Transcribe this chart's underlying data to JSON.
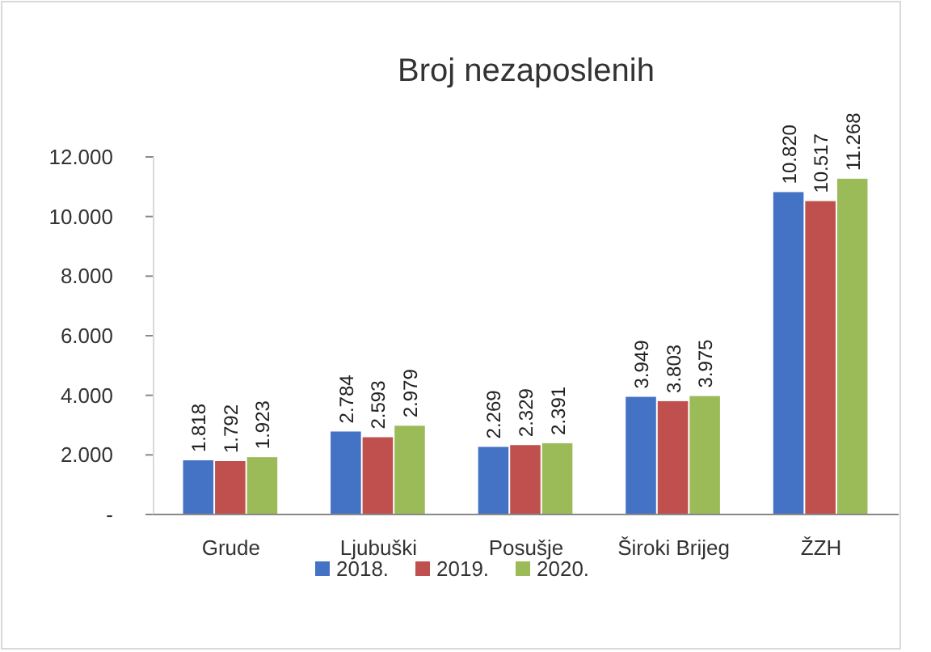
{
  "chart_data": {
    "type": "bar",
    "title": "Broj nezaposlenih",
    "categories": [
      "Grude",
      "Ljubuški",
      "Posušje",
      "Široki Brijeg",
      "ŽZH"
    ],
    "series": [
      {
        "name": "2018.",
        "color": "#4472c4",
        "values": [
          1818,
          2784,
          2269,
          3949,
          10820
        ],
        "value_labels": [
          "1.818",
          "2.784",
          "2.269",
          "3.949",
          "10.820"
        ]
      },
      {
        "name": "2019.",
        "color": "#c0504d",
        "values": [
          1792,
          2593,
          2329,
          3803,
          10517
        ],
        "value_labels": [
          "1.792",
          "2.593",
          "2.329",
          "3.803",
          "10.517"
        ]
      },
      {
        "name": "2020.",
        "color": "#9bbb59",
        "values": [
          1923,
          2979,
          2391,
          3975,
          11268
        ],
        "value_labels": [
          "1.923",
          "2.979",
          "2.391",
          "3.975",
          "11.268"
        ]
      }
    ],
    "ylim": [
      0,
      12000
    ],
    "yticks": [
      {
        "value": 0,
        "label": "-"
      },
      {
        "value": 2000,
        "label": "2.000"
      },
      {
        "value": 4000,
        "label": "4.000"
      },
      {
        "value": 6000,
        "label": "6.000"
      },
      {
        "value": 8000,
        "label": "8.000"
      },
      {
        "value": 10000,
        "label": "10.000"
      },
      {
        "value": 12000,
        "label": "12.000"
      }
    ],
    "grid": false,
    "legend": "bottom"
  }
}
